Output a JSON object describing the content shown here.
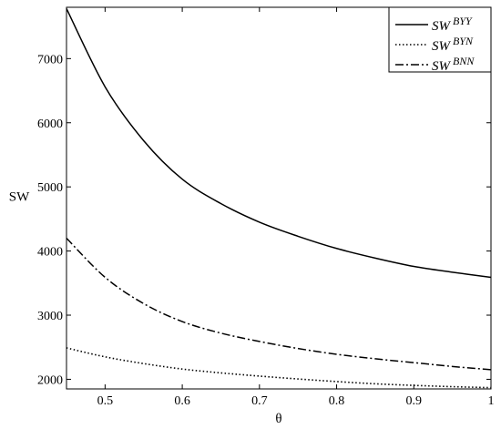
{
  "chart_data": {
    "type": "line",
    "xlabel": "θ",
    "ylabel": "SW",
    "xlim": [
      0.45,
      1.0
    ],
    "ylim": [
      1850,
      7800
    ],
    "x_ticks": [
      0.5,
      0.6,
      0.7,
      0.8,
      0.9,
      1
    ],
    "x_tick_labels": [
      "0.5",
      "0.6",
      "0.7",
      "0.8",
      "0.9",
      "1"
    ],
    "y_ticks": [
      2000,
      3000,
      4000,
      5000,
      6000,
      7000
    ],
    "y_tick_labels": [
      "2000",
      "3000",
      "4000",
      "5000",
      "6000",
      "7000"
    ],
    "grid": false,
    "legend_position": "top-right",
    "x": [
      0.45,
      0.5,
      0.55,
      0.6,
      0.65,
      0.7,
      0.75,
      0.8,
      0.85,
      0.9,
      0.95,
      1.0
    ],
    "series": [
      {
        "name": "SW",
        "name_sup": "BYY",
        "style": "solid",
        "color": "#000000",
        "values": [
          7780,
          6560,
          5720,
          5120,
          4740,
          4450,
          4230,
          4040,
          3890,
          3760,
          3670,
          3590
        ]
      },
      {
        "name": "SW",
        "name_sup": "BYN",
        "style": "dotted",
        "color": "#000000",
        "values": [
          2490,
          2350,
          2245,
          2160,
          2100,
          2050,
          2005,
          1965,
          1930,
          1905,
          1885,
          1870
        ]
      },
      {
        "name": "SW",
        "name_sup": "BNN",
        "style": "dashdot",
        "color": "#000000",
        "values": [
          4200,
          3590,
          3180,
          2900,
          2720,
          2590,
          2480,
          2390,
          2320,
          2260,
          2200,
          2150
        ]
      }
    ]
  }
}
